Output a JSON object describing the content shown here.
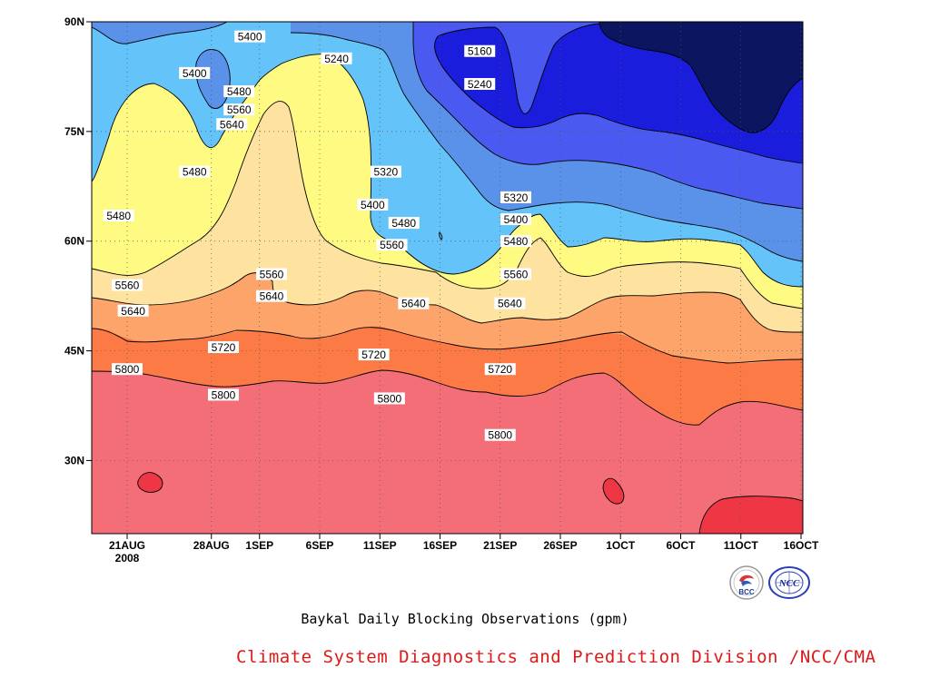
{
  "chart_data": {
    "type": "heatmap",
    "subtype": "filled-contour",
    "title": "Baykal Daily Blocking Observations (gpm)",
    "units": "gpm",
    "x_ticks": [
      {
        "label": "21AUG",
        "sub": "2008"
      },
      {
        "label": "28AUG",
        "sub": ""
      },
      {
        "label": "1SEP",
        "sub": ""
      },
      {
        "label": "6SEP",
        "sub": ""
      },
      {
        "label": "11SEP",
        "sub": ""
      },
      {
        "label": "16SEP",
        "sub": ""
      },
      {
        "label": "21SEP",
        "sub": ""
      },
      {
        "label": "26SEP",
        "sub": ""
      },
      {
        "label": "1OCT",
        "sub": ""
      },
      {
        "label": "6OCT",
        "sub": ""
      },
      {
        "label": "11OCT",
        "sub": ""
      },
      {
        "label": "16OCT",
        "sub": ""
      }
    ],
    "y_ticks": [
      "30N",
      "45N",
      "60N",
      "75N",
      "90N"
    ],
    "contour_levels": [
      5160,
      5240,
      5320,
      5400,
      5480,
      5560,
      5640,
      5720,
      5800
    ],
    "level_colors": [
      {
        "level": "<5160",
        "color": "#0c1660"
      },
      {
        "level": "5160-5240",
        "color": "#1a1edc"
      },
      {
        "level": "5240-5320",
        "color": "#4a5af0"
      },
      {
        "level": "5320-5400",
        "color": "#5a92ea"
      },
      {
        "level": "5400-5480",
        "color": "#64c4fa"
      },
      {
        "level": "5480-5560",
        "color": "#fefa82"
      },
      {
        "level": "5560-5640",
        "color": "#fde2a0"
      },
      {
        "level": "5640-5720",
        "color": "#fca46a"
      },
      {
        "level": "5720-5800",
        "color": "#fb7a46"
      },
      {
        "level": "5800-5880",
        "color": "#f46e78"
      },
      {
        "level": ">5880",
        "color": "#ee3644"
      }
    ],
    "labels": [
      {
        "text": "5400",
        "date_index": 5.6,
        "lat": 83
      },
      {
        "text": "5400",
        "date_index": 10.2,
        "lat": 88
      },
      {
        "text": "5480",
        "date_index": 9.3,
        "lat": 80.5
      },
      {
        "text": "5560",
        "date_index": 9.3,
        "lat": 78
      },
      {
        "text": "5640",
        "date_index": 8.7,
        "lat": 76
      },
      {
        "text": "5480",
        "date_index": 5.6,
        "lat": 69.5
      },
      {
        "text": "5480",
        "date_index": -0.7,
        "lat": 63.5
      },
      {
        "text": "5240",
        "date_index": 17.4,
        "lat": 85
      },
      {
        "text": "5160",
        "date_index": 29.3,
        "lat": 86
      },
      {
        "text": "5240",
        "date_index": 29.3,
        "lat": 81.5
      },
      {
        "text": "5320",
        "date_index": 21.5,
        "lat": 69.5
      },
      {
        "text": "5400",
        "date_index": 20.4,
        "lat": 65
      },
      {
        "text": "5480",
        "date_index": 23.0,
        "lat": 62.5
      },
      {
        "text": "5560",
        "date_index": 22.0,
        "lat": 59.5
      },
      {
        "text": "5320",
        "date_index": 32.3,
        "lat": 66
      },
      {
        "text": "5400",
        "date_index": 32.3,
        "lat": 63
      },
      {
        "text": "5480",
        "date_index": 32.3,
        "lat": 60
      },
      {
        "text": "5560",
        "date_index": 32.3,
        "lat": 55.5
      },
      {
        "text": "5560",
        "date_index": 12.0,
        "lat": 55.5
      },
      {
        "text": "5640",
        "date_index": 12.0,
        "lat": 52.5
      },
      {
        "text": "5560",
        "date_index": 0.0,
        "lat": 54
      },
      {
        "text": "5640",
        "date_index": 0.5,
        "lat": 50.5
      },
      {
        "text": "5640",
        "date_index": 23.8,
        "lat": 51.5
      },
      {
        "text": "5640",
        "date_index": 31.8,
        "lat": 51.5
      },
      {
        "text": "5720",
        "date_index": 8.0,
        "lat": 45.5
      },
      {
        "text": "5720",
        "date_index": 20.5,
        "lat": 44.5
      },
      {
        "text": "5720",
        "date_index": 31.0,
        "lat": 42.5
      },
      {
        "text": "5800",
        "date_index": 0.0,
        "lat": 42.5
      },
      {
        "text": "5800",
        "date_index": 8.0,
        "lat": 39.0
      },
      {
        "text": "5800",
        "date_index": 21.8,
        "lat": 38.5
      },
      {
        "text": "5800",
        "date_index": 31.0,
        "lat": 33.5
      }
    ],
    "grid": true
  },
  "caption": "Baykal Daily Blocking Observations (gpm)",
  "credit": "Climate System Diagnostics and Prediction Division /NCC/CMA",
  "logos": [
    {
      "name": "bcc-logo",
      "text": "BCC"
    },
    {
      "name": "ncc-logo",
      "text": "NCC"
    }
  ]
}
